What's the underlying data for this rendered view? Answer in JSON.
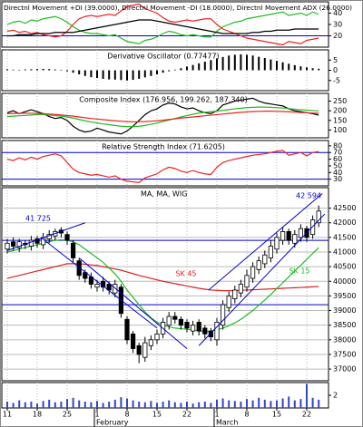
{
  "x_axis": {
    "categories": [
      "11",
      null,
      null,
      null,
      null,
      "18",
      null,
      null,
      null,
      null,
      "25",
      null,
      null,
      null,
      null,
      "1",
      null,
      null,
      null,
      null,
      "8",
      null,
      null,
      null,
      null,
      "15",
      null,
      null,
      null,
      null,
      "22",
      null,
      null,
      null,
      null,
      "1",
      null,
      null,
      null,
      null,
      "8",
      null,
      null,
      null,
      null,
      "15",
      null,
      null,
      null,
      null,
      "22",
      null,
      null
    ],
    "months": [
      "February",
      "March"
    ]
  },
  "chart_data": [
    {
      "type": "line",
      "title": "Directnl Movement +DI (39.0000), Directnl Movement -DI (18.0000), Directnl Movement ADX (26.0000)",
      "ylim": [
        10,
        50
      ],
      "yticks": [
        20,
        30,
        40
      ],
      "hlines": [
        20
      ],
      "hline_color": "#0000cc",
      "series": [
        {
          "color": "#22bb22",
          "values": [
            30,
            32,
            33,
            31,
            34,
            33,
            35,
            36,
            37,
            35,
            32,
            28,
            25,
            23,
            22,
            22,
            21,
            20,
            21,
            18,
            15,
            14,
            13,
            16,
            17,
            19,
            22,
            24,
            23,
            21,
            20,
            21,
            20,
            19,
            19,
            24,
            28,
            30,
            32,
            33,
            35,
            36,
            37,
            38,
            39,
            40,
            41,
            38,
            39,
            40,
            38,
            41,
            39
          ]
        },
        {
          "color": "#ee2222",
          "values": [
            24,
            25,
            23,
            24,
            22,
            23,
            21,
            20,
            19,
            20,
            24,
            30,
            35,
            37,
            38,
            37,
            38,
            39,
            38,
            42,
            46,
            47,
            48,
            44,
            42,
            40,
            36,
            33,
            32,
            33,
            34,
            33,
            34,
            35,
            35,
            30,
            26,
            24,
            22,
            20,
            18,
            17,
            16,
            15,
            14,
            13,
            12,
            15,
            14,
            13,
            16,
            17,
            18
          ]
        },
        {
          "color": "#000000",
          "values": [
            20,
            20,
            21,
            21,
            21,
            22,
            22,
            22,
            23,
            23,
            23,
            23,
            24,
            25,
            26,
            27,
            28,
            29,
            30,
            31,
            32,
            33,
            34,
            34,
            34,
            33,
            32,
            31,
            30,
            29,
            28,
            27,
            26,
            25,
            24,
            23,
            22,
            22,
            22,
            22,
            22,
            23,
            23,
            24,
            24,
            25,
            25,
            25,
            26,
            26,
            26,
            26,
            26
          ]
        }
      ]
    },
    {
      "type": "bar",
      "title": "Derivative Oscillator (0.77477)",
      "color": "#000000",
      "ylim": [
        -10,
        10
      ],
      "yticks": [
        5,
        0,
        -5
      ],
      "values": [
        0.5,
        0.3,
        0.2,
        0.4,
        0.5,
        0.6,
        0.7,
        0.6,
        0.4,
        0.2,
        -0.5,
        -1.2,
        -2,
        -2.8,
        -3.4,
        -3.8,
        -4.2,
        -4.5,
        -4.6,
        -4.8,
        -5,
        -4.7,
        -4.2,
        -3.5,
        -2.8,
        -2,
        -1.2,
        -0.5,
        0.3,
        1,
        1.8,
        2.6,
        3.4,
        4.2,
        5,
        5.8,
        6.5,
        7.2,
        7.6,
        7.8,
        7.6,
        7.2,
        6.6,
        6,
        5.3,
        4.6,
        3.9,
        3.2,
        2.5,
        1.9,
        1.4,
        1,
        0.77477
      ]
    },
    {
      "type": "line",
      "title": "Composite Index (176.956, 199.262, 187.340)",
      "ylim": [
        60,
        290
      ],
      "yticks": [
        250,
        200,
        150,
        100
      ],
      "series": [
        {
          "color": "#000000",
          "values": [
            190,
            200,
            185,
            195,
            205,
            195,
            185,
            170,
            160,
            165,
            150,
            120,
            100,
            90,
            95,
            110,
            100,
            90,
            85,
            80,
            95,
            120,
            150,
            180,
            200,
            210,
            230,
            240,
            235,
            220,
            210,
            215,
            200,
            190,
            185,
            200,
            230,
            240,
            250,
            255,
            260,
            265,
            250,
            240,
            235,
            230,
            225,
            210,
            200,
            195,
            190,
            185,
            176.956
          ]
        },
        {
          "color": "#22bb22",
          "values": [
            170,
            172,
            174,
            176,
            178,
            180,
            180,
            178,
            175,
            172,
            168,
            162,
            155,
            148,
            142,
            137,
            132,
            128,
            124,
            120,
            118,
            118,
            120,
            124,
            130,
            136,
            144,
            152,
            160,
            168,
            175,
            182,
            188,
            192,
            195,
            198,
            202,
            206,
            210,
            213,
            216,
            218,
            219,
            219,
            218,
            216,
            214,
            211,
            208,
            205,
            203,
            201,
            199.262
          ]
        },
        {
          "color": "#ee2222",
          "values": [
            185,
            186,
            187,
            187,
            187,
            186,
            185,
            183,
            181,
            178,
            175,
            172,
            168,
            164,
            160,
            157,
            154,
            151,
            148,
            146,
            144,
            143,
            143,
            144,
            146,
            148,
            151,
            155,
            158,
            162,
            165,
            168,
            171,
            174,
            177,
            180,
            183,
            186,
            189,
            192,
            194,
            196,
            197,
            198,
            198,
            197,
            196,
            195,
            193,
            191,
            190,
            188,
            187.34
          ]
        }
      ]
    },
    {
      "type": "line",
      "title": "Relative Strength Index (71.6205)",
      "ylim": [
        20,
        88
      ],
      "yticks": [
        80,
        70,
        60,
        50,
        40,
        30
      ],
      "hlines": [
        70,
        30
      ],
      "hline_color": "#0000cc",
      "series": [
        {
          "color": "#ee2222",
          "values": [
            60,
            58,
            62,
            59,
            63,
            60,
            64,
            66,
            68,
            65,
            55,
            45,
            40,
            38,
            36,
            37,
            35,
            33,
            35,
            30,
            27,
            26,
            25,
            32,
            35,
            38,
            44,
            48,
            46,
            42,
            40,
            43,
            40,
            38,
            37,
            48,
            55,
            58,
            60,
            62,
            64,
            66,
            67,
            68,
            70,
            72,
            73,
            66,
            68,
            70,
            65,
            70,
            71.6205
          ]
        }
      ]
    },
    {
      "type": "candlestick",
      "title": "MA, MA, WIG",
      "grid": true,
      "ylim": [
        36600,
        43200
      ],
      "yticks": [
        37000,
        37500,
        38000,
        38500,
        39000,
        39500,
        40000,
        40500,
        41000,
        41500,
        42000,
        42500
      ],
      "hlines": [
        41400,
        39200
      ],
      "hline_color": "#0000cc",
      "open": [
        41100,
        41350,
        41150,
        41300,
        41200,
        41450,
        41250,
        41450,
        41550,
        41750,
        41600,
        41300,
        40700,
        40300,
        40150,
        39800,
        40000,
        39900,
        39600,
        39800,
        38700,
        38200,
        37800,
        37400,
        37800,
        38000,
        38200,
        38500,
        38800,
        38700,
        38600,
        38300,
        38600,
        38400,
        38300,
        38000,
        38500,
        39100,
        39400,
        39600,
        39800,
        40100,
        40400,
        40600,
        40800,
        41100,
        41400,
        41700,
        41300,
        41500,
        41800,
        41600,
        42000
      ],
      "high": [
        41450,
        41500,
        41450,
        41400,
        41550,
        41550,
        41650,
        41750,
        41800,
        41850,
        41700,
        41400,
        40800,
        40400,
        40300,
        40050,
        40150,
        40000,
        40050,
        39900,
        38800,
        38300,
        37900,
        38100,
        38150,
        38350,
        38750,
        38950,
        38950,
        38800,
        38700,
        38650,
        38700,
        38500,
        38400,
        38750,
        39350,
        39650,
        39850,
        40050,
        40400,
        40650,
        40850,
        41050,
        41400,
        41650,
        41850,
        41800,
        41750,
        41950,
        41900,
        42250,
        42594
      ],
      "low": [
        40950,
        41050,
        41000,
        41100,
        41050,
        41150,
        41100,
        41300,
        41400,
        41500,
        41250,
        40650,
        40050,
        39950,
        39750,
        39650,
        39650,
        39550,
        39450,
        38750,
        37850,
        37550,
        37200,
        37250,
        37650,
        37850,
        38050,
        38350,
        38550,
        38350,
        38250,
        38150,
        38150,
        38050,
        37950,
        37800,
        38350,
        38950,
        39250,
        39450,
        39650,
        39950,
        40250,
        40450,
        40650,
        40950,
        41250,
        41250,
        41150,
        41350,
        41350,
        41450,
        41850
      ],
      "close": [
        41300,
        41200,
        41350,
        41250,
        41400,
        41300,
        41500,
        41600,
        41700,
        41650,
        41400,
        40800,
        40200,
        40100,
        39900,
        39900,
        39800,
        39700,
        39900,
        38900,
        38000,
        37700,
        37500,
        37900,
        38000,
        38200,
        38600,
        38800,
        38700,
        38500,
        38400,
        38500,
        38300,
        38200,
        38100,
        38600,
        39200,
        39500,
        39700,
        39900,
        40200,
        40500,
        40700,
        40900,
        41200,
        41500,
        41700,
        41400,
        41600,
        41800,
        41500,
        42100,
        42400
      ],
      "series": [
        {
          "color": "#dd2222",
          "values": [
            40100,
            40150,
            40200,
            40250,
            40300,
            40350,
            40400,
            40450,
            40500,
            40550,
            40600,
            40600,
            40600,
            40580,
            40560,
            40540,
            40500,
            40460,
            40420,
            40380,
            40320,
            40260,
            40200,
            40150,
            40100,
            40050,
            40000,
            39960,
            39920,
            39880,
            39840,
            39800,
            39760,
            39730,
            39700,
            39690,
            39680,
            39680,
            39680,
            39690,
            39700,
            39710,
            39720,
            39730,
            39740,
            39750,
            39760,
            39770,
            39780,
            39790,
            39800,
            39810,
            39820
          ]
        },
        {
          "color": "#22bb22",
          "values": [
            41000,
            41050,
            41100,
            41150,
            41200,
            41250,
            41300,
            41350,
            41400,
            41420,
            41400,
            41350,
            41250,
            41100,
            40950,
            40800,
            40650,
            40450,
            40250,
            40000,
            39700,
            39450,
            39200,
            38950,
            38750,
            38600,
            38500,
            38450,
            38400,
            38380,
            38360,
            38340,
            38300,
            38280,
            38300,
            38340,
            38400,
            38480,
            38580,
            38700,
            38850,
            39000,
            39180,
            39360,
            39550,
            39750,
            39950,
            40150,
            40350,
            40550,
            40750,
            40950,
            41150
          ]
        }
      ],
      "trendlines": [
        {
          "x": [
            0,
            13
          ],
          "y": [
            41050,
            42000
          ]
        },
        {
          "x": [
            5.6,
            25
          ],
          "y": [
            41500,
            38400
          ]
        },
        {
          "x": [
            12,
            30
          ],
          "y": [
            40800,
            37700
          ]
        },
        {
          "x": [
            32,
            53
          ],
          "y": [
            37800,
            42300
          ]
        },
        {
          "x": [
            33.6,
            52.6
          ],
          "y": [
            39700,
            43000
          ]
        }
      ],
      "annotations": [
        {
          "text": "41 725",
          "color": "#0000cc"
        },
        {
          "text": "42 594",
          "color": "#0000cc"
        },
        {
          "text": "SK 45",
          "color": "#dd2222"
        },
        {
          "text": "SK 15",
          "color": "#22bb22"
        }
      ]
    },
    {
      "type": "bar",
      "title": null,
      "color": "#3344cc",
      "ylim": [
        0,
        4
      ],
      "yticks": [
        2
      ],
      "values": [
        1,
        0.8,
        1.2,
        0.9,
        1,
        0.7,
        1.1,
        1.3,
        0.9,
        1,
        1.4,
        1.6,
        1.2,
        1,
        0.9,
        1.1,
        0.8,
        1,
        1.3,
        1.7,
        1.5,
        1.2,
        1,
        0.9,
        1.1,
        0.8,
        1,
        1.2,
        0.9,
        0.8,
        1,
        0.7,
        0.9,
        1,
        0.8,
        1.3,
        1.5,
        1.2,
        1.1,
        1,
        1.4,
        1.2,
        1.6,
        1.3,
        1.1,
        1.2,
        1.5,
        1.8,
        1.2,
        1.4,
        3.8,
        1.6,
        1.3
      ]
    }
  ]
}
